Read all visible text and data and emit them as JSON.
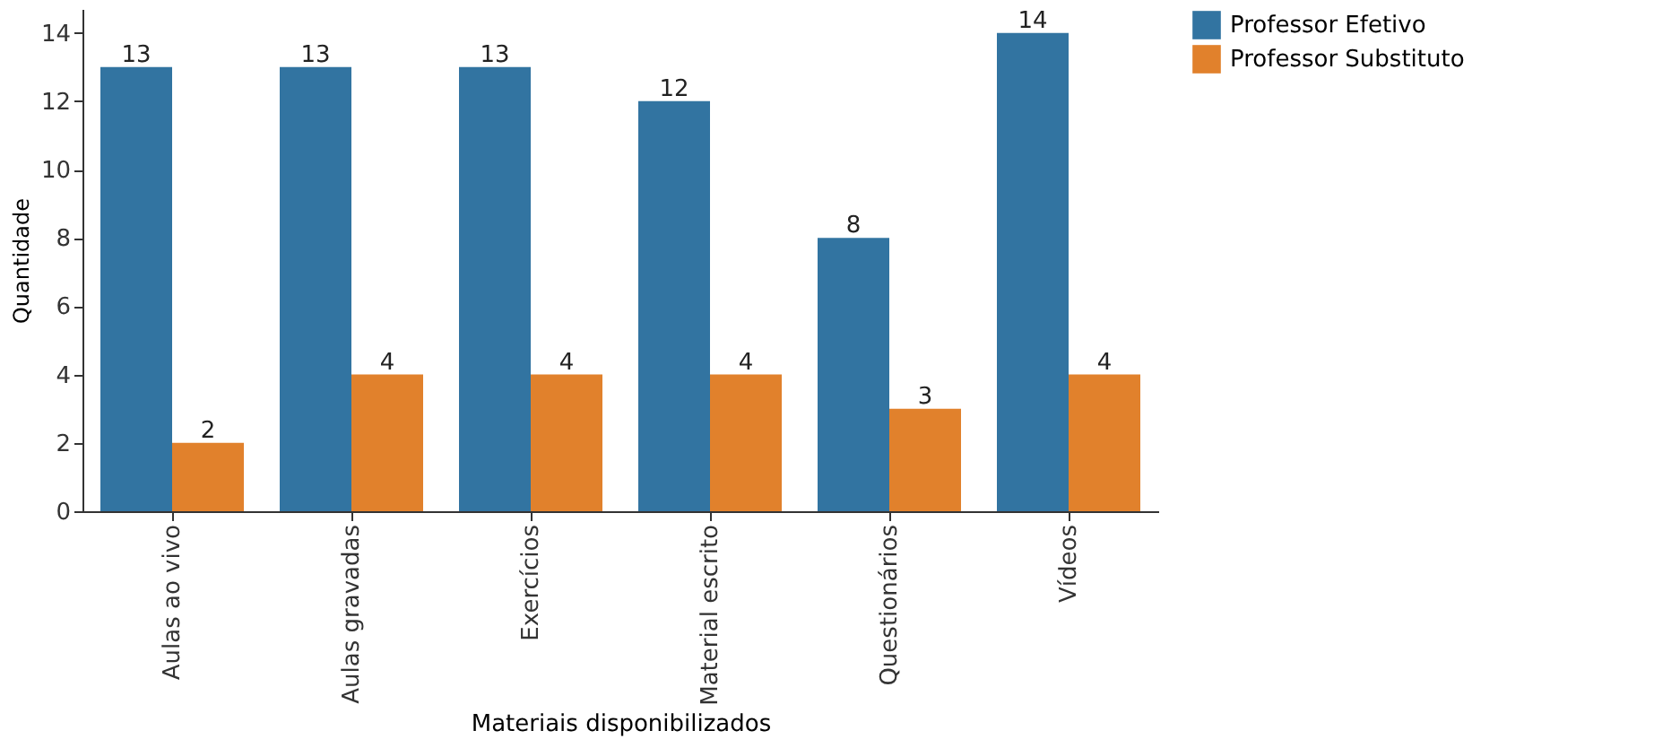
{
  "chart_data": {
    "type": "bar",
    "xlabel": "Materiais disponibilizados",
    "ylabel": "Quantidade",
    "categories": [
      "Aulas ao vivo",
      "Aulas gravadas",
      "Exercícios",
      "Material escrito",
      "Questionários",
      "Vídeos"
    ],
    "series": [
      {
        "name": "Professor Efetivo",
        "color": "#3274a1",
        "values": [
          13,
          13,
          13,
          12,
          8,
          14
        ]
      },
      {
        "name": "Professor Substituto",
        "color": "#e1812c",
        "values": [
          2,
          4,
          4,
          4,
          3,
          4
        ]
      }
    ],
    "ylim": [
      0,
      14.7
    ],
    "yticks": [
      0,
      2,
      4,
      6,
      8,
      10,
      12,
      14
    ],
    "grid": false,
    "legend": "top right",
    "data_labels": true
  }
}
